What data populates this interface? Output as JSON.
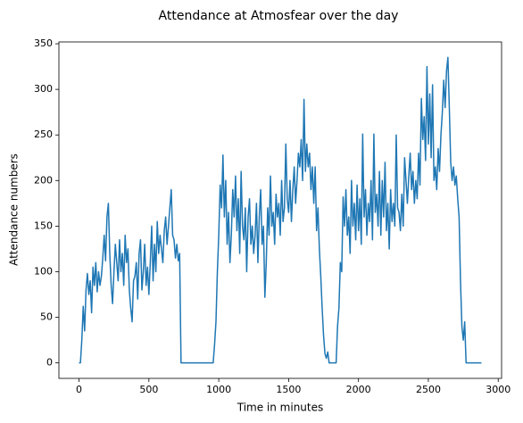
{
  "chart_data": {
    "type": "line",
    "title": "Attendance at Atmosfear over the day",
    "x_label": "Time in minutes",
    "y_label": "Attendance numbers",
    "color": "#1f77b4",
    "grid": false,
    "xlim": [
      -144,
      3024
    ],
    "ylim": [
      -17,
      352
    ],
    "xticks": [
      0,
      500,
      1000,
      1500,
      2000,
      2500,
      3000
    ],
    "yticks": [
      0,
      50,
      100,
      150,
      200,
      250,
      300,
      350
    ],
    "x": [
      0,
      10,
      20,
      30,
      40,
      50,
      60,
      70,
      80,
      90,
      100,
      110,
      120,
      130,
      140,
      150,
      160,
      170,
      180,
      190,
      200,
      210,
      220,
      230,
      240,
      250,
      260,
      270,
      280,
      290,
      300,
      310,
      320,
      330,
      340,
      350,
      360,
      370,
      380,
      390,
      400,
      410,
      420,
      430,
      440,
      450,
      460,
      470,
      480,
      490,
      500,
      510,
      520,
      530,
      540,
      550,
      560,
      570,
      580,
      590,
      600,
      610,
      620,
      630,
      640,
      650,
      660,
      670,
      680,
      690,
      700,
      710,
      720,
      730,
      960,
      970,
      980,
      990,
      1000,
      1010,
      1020,
      1030,
      1040,
      1050,
      1060,
      1070,
      1080,
      1090,
      1100,
      1110,
      1120,
      1130,
      1140,
      1150,
      1160,
      1170,
      1180,
      1190,
      1200,
      1210,
      1220,
      1230,
      1240,
      1250,
      1260,
      1270,
      1280,
      1290,
      1300,
      1310,
      1320,
      1330,
      1340,
      1350,
      1360,
      1370,
      1380,
      1390,
      1400,
      1410,
      1420,
      1430,
      1440,
      1450,
      1460,
      1470,
      1480,
      1490,
      1500,
      1510,
      1520,
      1530,
      1540,
      1550,
      1560,
      1570,
      1580,
      1590,
      1600,
      1610,
      1620,
      1630,
      1640,
      1650,
      1660,
      1670,
      1680,
      1690,
      1700,
      1710,
      1720,
      1730,
      1740,
      1750,
      1760,
      1770,
      1780,
      1790,
      1840,
      1850,
      1860,
      1870,
      1880,
      1890,
      1900,
      1910,
      1920,
      1930,
      1940,
      1950,
      1960,
      1970,
      1980,
      1990,
      2000,
      2010,
      2020,
      2030,
      2040,
      2050,
      2060,
      2070,
      2080,
      2090,
      2100,
      2110,
      2120,
      2130,
      2140,
      2150,
      2160,
      2170,
      2180,
      2190,
      2200,
      2210,
      2220,
      2230,
      2240,
      2250,
      2260,
      2270,
      2280,
      2290,
      2300,
      2310,
      2320,
      2330,
      2340,
      2350,
      2360,
      2370,
      2380,
      2390,
      2400,
      2410,
      2420,
      2430,
      2440,
      2450,
      2460,
      2470,
      2480,
      2490,
      2500,
      2510,
      2520,
      2530,
      2540,
      2550,
      2560,
      2570,
      2580,
      2590,
      2600,
      2610,
      2620,
      2630,
      2640,
      2650,
      2660,
      2670,
      2680,
      2690,
      2700,
      2710,
      2720,
      2730,
      2740,
      2750,
      2760,
      2770,
      2880
    ],
    "values": [
      0,
      0,
      25,
      62,
      35,
      80,
      98,
      75,
      90,
      55,
      105,
      85,
      110,
      78,
      100,
      85,
      95,
      115,
      140,
      112,
      160,
      175,
      120,
      85,
      65,
      100,
      130,
      110,
      90,
      135,
      100,
      120,
      85,
      140,
      110,
      125,
      80,
      60,
      45,
      90,
      95,
      110,
      70,
      120,
      135,
      80,
      100,
      130,
      85,
      105,
      75,
      110,
      150,
      90,
      130,
      100,
      155,
      120,
      140,
      125,
      110,
      145,
      160,
      130,
      150,
      170,
      190,
      140,
      135,
      115,
      130,
      112,
      120,
      0,
      0,
      20,
      45,
      100,
      140,
      195,
      170,
      228,
      160,
      200,
      130,
      165,
      110,
      140,
      190,
      160,
      205,
      145,
      180,
      120,
      210,
      150,
      135,
      170,
      100,
      160,
      180,
      130,
      150,
      120,
      140,
      175,
      110,
      160,
      190,
      130,
      150,
      72,
      110,
      170,
      140,
      205,
      150,
      165,
      130,
      185,
      160,
      175,
      140,
      200,
      155,
      170,
      240,
      180,
      165,
      200,
      155,
      190,
      215,
      175,
      200,
      230,
      215,
      245,
      200,
      289,
      210,
      240,
      215,
      230,
      190,
      215,
      175,
      215,
      145,
      170,
      125,
      95,
      60,
      30,
      10,
      5,
      12,
      0,
      0,
      40,
      60,
      110,
      100,
      182,
      150,
      190,
      140,
      160,
      120,
      200,
      150,
      175,
      135,
      195,
      145,
      180,
      130,
      251,
      160,
      190,
      140,
      175,
      155,
      200,
      135,
      251,
      165,
      185,
      150,
      210,
      140,
      200,
      160,
      220,
      145,
      175,
      125,
      190,
      155,
      175,
      150,
      250,
      170,
      165,
      145,
      185,
      150,
      225,
      200,
      175,
      205,
      230,
      190,
      210,
      175,
      200,
      180,
      230,
      195,
      290,
      245,
      270,
      222,
      325,
      240,
      295,
      225,
      305,
      200,
      215,
      190,
      235,
      210,
      250,
      275,
      310,
      280,
      320,
      335,
      280,
      220,
      200,
      215,
      195,
      205,
      180,
      160,
      90,
      40,
      25,
      45,
      0,
      0
    ]
  }
}
